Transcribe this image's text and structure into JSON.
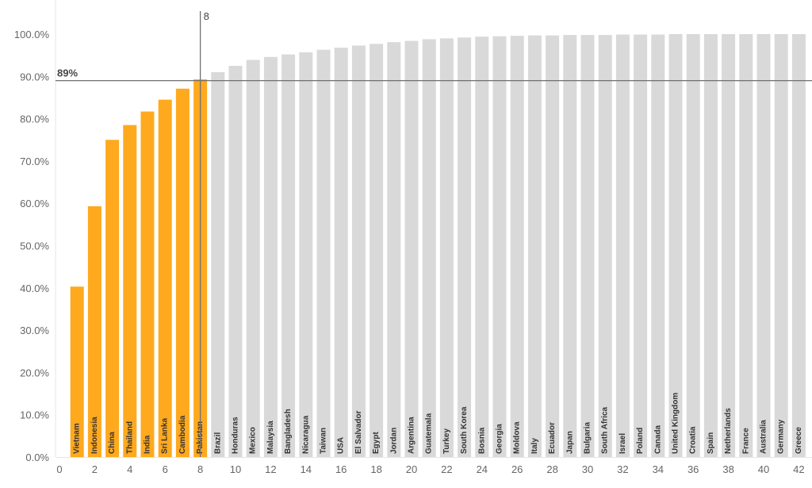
{
  "chart_data": {
    "type": "bar",
    "title": "",
    "xlabel": "",
    "ylabel": "",
    "ylim": [
      0,
      1.0
    ],
    "xlim": [
      0,
      43
    ],
    "y_ticks": [
      "0.0%",
      "10.0%",
      "20.0%",
      "30.0%",
      "40.0%",
      "50.0%",
      "60.0%",
      "70.0%",
      "80.0%",
      "90.0%",
      "100.0%"
    ],
    "x_ticks": [
      "0",
      "2",
      "4",
      "6",
      "8",
      "10",
      "12",
      "14",
      "16",
      "18",
      "20",
      "22",
      "24",
      "26",
      "28",
      "30",
      "32",
      "34",
      "36",
      "38",
      "40",
      "42"
    ],
    "highlight_color": "#FFA91E",
    "base_color": "#D9D9D9",
    "reference_lines": {
      "horizontal": {
        "value": 0.89,
        "label": "89%"
      },
      "vertical": {
        "value": 8,
        "label": "8"
      }
    },
    "categories": [
      "Vietnam",
      "Indonesia",
      "China",
      "Thailand",
      "India",
      "Sri Lanka",
      "Cambodia",
      "Pakistan",
      "Brazil",
      "Honduras",
      "Mexico",
      "Malaysia",
      "Bangladesh",
      "Nicaragua",
      "Taiwan",
      "USA",
      "El Salvador",
      "Egypt",
      "Jordan",
      "Argentina",
      "Guatemala",
      "Turkey",
      "South Korea",
      "Bosnia",
      "Georgia",
      "Moldova",
      "Italy",
      "Ecuador",
      "Japan",
      "Bulgaria",
      "South Africa",
      "Israel",
      "Poland",
      "Canada",
      "United Kingdom",
      "Croatia",
      "Spain",
      "Netherlands",
      "France",
      "Australia",
      "Germany",
      "Greece"
    ],
    "x": [
      1,
      2,
      3,
      4,
      5,
      6,
      7,
      8,
      9,
      10,
      11,
      12,
      13,
      14,
      15,
      16,
      17,
      18,
      19,
      20,
      21,
      22,
      23,
      24,
      25,
      26,
      27,
      28,
      29,
      30,
      31,
      32,
      33,
      34,
      35,
      36,
      37,
      38,
      39,
      40,
      41,
      42
    ],
    "values": [
      0.403,
      0.593,
      0.75,
      0.785,
      0.817,
      0.845,
      0.871,
      0.893,
      0.91,
      0.925,
      0.939,
      0.946,
      0.952,
      0.957,
      0.963,
      0.968,
      0.973,
      0.977,
      0.981,
      0.984,
      0.988,
      0.99,
      0.992,
      0.994,
      0.995,
      0.996,
      0.997,
      0.997,
      0.998,
      0.998,
      0.998,
      0.999,
      0.999,
      0.999,
      1.0,
      1.0,
      1.0,
      1.0,
      1.0,
      1.0,
      1.0,
      1.0
    ],
    "highlighted_count": 8
  }
}
